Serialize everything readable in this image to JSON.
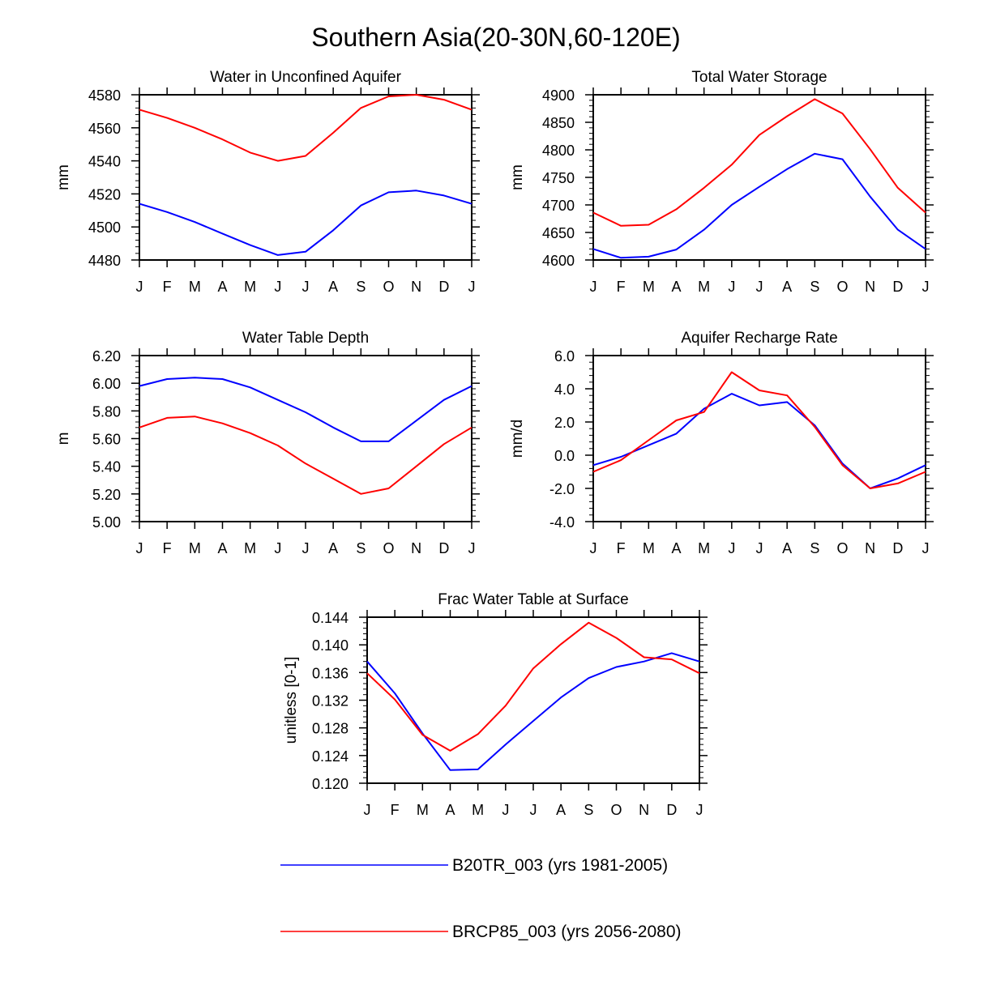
{
  "figure_title": "Southern Asia(20-30N,60-120E)",
  "colors": {
    "blue": "#0000ff",
    "red": "#ff0000",
    "axis": "#000000"
  },
  "legend": [
    {
      "label": "B20TR_003 (yrs 1981-2005)",
      "color": "#0000ff"
    },
    {
      "label": "BRCP85_003 (yrs 2056-2080)",
      "color": "#ff0000"
    }
  ],
  "chart_data": [
    {
      "type": "line",
      "title": "Water in Unconfined Aquifer",
      "ylabel": "mm",
      "x": [
        "J",
        "F",
        "M",
        "A",
        "M",
        "J",
        "J",
        "A",
        "S",
        "O",
        "N",
        "D",
        "J"
      ],
      "ylim": [
        4480,
        4580
      ],
      "yticks": [
        4480,
        4500,
        4520,
        4540,
        4560,
        4580
      ],
      "ytick_labels": [
        "4480",
        "4500",
        "4520",
        "4540",
        "4560",
        "4580"
      ],
      "series": [
        {
          "name": "B20TR_003 (yrs 1981-2005)",
          "color": "#0000ff",
          "values": [
            4514,
            4509,
            4503,
            4496,
            4489,
            4483,
            4485,
            4498,
            4513,
            4521,
            4522,
            4519,
            4514
          ]
        },
        {
          "name": "BRCP85_003 (yrs 2056-2080)",
          "color": "#ff0000",
          "values": [
            4571,
            4566,
            4560,
            4553,
            4545,
            4540,
            4543,
            4557,
            4572,
            4579,
            4580,
            4577,
            4571
          ]
        }
      ]
    },
    {
      "type": "line",
      "title": "Total Water Storage",
      "ylabel": "mm",
      "x": [
        "J",
        "F",
        "M",
        "A",
        "M",
        "J",
        "J",
        "A",
        "S",
        "O",
        "N",
        "D",
        "J"
      ],
      "ylim": [
        4600,
        4900
      ],
      "yticks": [
        4600,
        4650,
        4700,
        4750,
        4800,
        4850,
        4900
      ],
      "ytick_labels": [
        "4600",
        "4650",
        "4700",
        "4750",
        "4800",
        "4850",
        "4900"
      ],
      "series": [
        {
          "name": "B20TR_003 (yrs 1981-2005)",
          "color": "#0000ff",
          "values": [
            4620,
            4604,
            4606,
            4619,
            4655,
            4700,
            4733,
            4765,
            4793,
            4783,
            4715,
            4655,
            4620
          ]
        },
        {
          "name": "BRCP85_003 (yrs 2056-2080)",
          "color": "#ff0000",
          "values": [
            4686,
            4662,
            4664,
            4692,
            4731,
            4773,
            4827,
            4861,
            4892,
            4866,
            4801,
            4731,
            4686
          ]
        }
      ]
    },
    {
      "type": "line",
      "title": "Water Table Depth",
      "ylabel": "m",
      "x": [
        "J",
        "F",
        "M",
        "A",
        "M",
        "J",
        "J",
        "A",
        "S",
        "O",
        "N",
        "D",
        "J"
      ],
      "ylim": [
        5.0,
        6.2
      ],
      "yticks": [
        5.0,
        5.2,
        5.4,
        5.6,
        5.8,
        6.0,
        6.2
      ],
      "ytick_labels": [
        "5.00",
        "5.20",
        "5.40",
        "5.60",
        "5.80",
        "6.00",
        "6.20"
      ],
      "series": [
        {
          "name": "B20TR_003 (yrs 1981-2005)",
          "color": "#0000ff",
          "values": [
            5.98,
            6.03,
            6.04,
            6.03,
            5.97,
            5.88,
            5.79,
            5.68,
            5.58,
            5.58,
            5.73,
            5.88,
            5.98
          ]
        },
        {
          "name": "BRCP85_003 (yrs 2056-2080)",
          "color": "#ff0000",
          "values": [
            5.68,
            5.75,
            5.76,
            5.71,
            5.64,
            5.55,
            5.42,
            5.31,
            5.2,
            5.24,
            5.4,
            5.56,
            5.68
          ]
        }
      ]
    },
    {
      "type": "line",
      "title": "Aquifer Recharge Rate",
      "ylabel": "mm/d",
      "x": [
        "J",
        "F",
        "M",
        "A",
        "M",
        "J",
        "J",
        "A",
        "S",
        "O",
        "N",
        "D",
        "J"
      ],
      "ylim": [
        -4.0,
        6.0
      ],
      "yticks": [
        -4.0,
        -2.0,
        0.0,
        2.0,
        4.0,
        6.0
      ],
      "ytick_labels": [
        "-4.0",
        "-2.0",
        "0.0",
        "2.0",
        "4.0",
        "6.0"
      ],
      "series": [
        {
          "name": "B20TR_003 (yrs 1981-2005)",
          "color": "#0000ff",
          "values": [
            -0.6,
            -0.1,
            0.6,
            1.3,
            2.8,
            3.7,
            3.0,
            3.2,
            1.8,
            -0.5,
            -2.0,
            -1.4,
            -0.6
          ]
        },
        {
          "name": "BRCP85_003 (yrs 2056-2080)",
          "color": "#ff0000",
          "values": [
            -1.0,
            -0.3,
            0.9,
            2.1,
            2.6,
            5.0,
            3.9,
            3.6,
            1.7,
            -0.6,
            -2.0,
            -1.7,
            -1.0
          ]
        }
      ]
    },
    {
      "type": "line",
      "title": "Frac Water Table at Surface",
      "ylabel": "unitless [0-1]",
      "x": [
        "J",
        "F",
        "M",
        "A",
        "M",
        "J",
        "J",
        "A",
        "S",
        "O",
        "N",
        "D",
        "J"
      ],
      "ylim": [
        0.12,
        0.144
      ],
      "yticks": [
        0.12,
        0.124,
        0.128,
        0.132,
        0.136,
        0.14,
        0.144
      ],
      "ytick_labels": [
        "0.120",
        "0.124",
        "0.128",
        "0.132",
        "0.136",
        "0.140",
        "0.144"
      ],
      "series": [
        {
          "name": "B20TR_003 (yrs 1981-2005)",
          "color": "#0000ff",
          "values": [
            0.1376,
            0.133,
            0.1272,
            0.1219,
            0.122,
            0.1256,
            0.129,
            0.1324,
            0.1352,
            0.1368,
            0.1376,
            0.1388,
            0.1376
          ]
        },
        {
          "name": "BRCP85_003 (yrs 2056-2080)",
          "color": "#ff0000",
          "values": [
            0.1359,
            0.1321,
            0.127,
            0.1247,
            0.1271,
            0.1312,
            0.1366,
            0.1401,
            0.1432,
            0.141,
            0.1382,
            0.1379,
            0.1359
          ]
        }
      ]
    }
  ]
}
